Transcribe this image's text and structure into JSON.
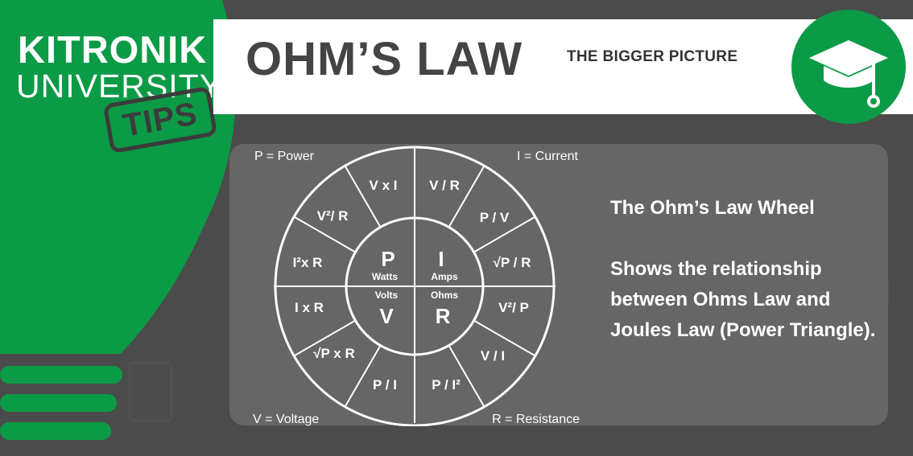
{
  "brand": {
    "line1": "KITRONIK",
    "line2": "UNIVERSITY",
    "badge": "TIPS"
  },
  "header": {
    "title": "OHM’S LAW",
    "subtitle": "THE BIGGER PICTURE"
  },
  "badge_icon": "graduation-cap-icon",
  "colors": {
    "brand_green": "#0b9b46",
    "background": "#4b4b4b",
    "panel": "#666666",
    "title_text": "#444444"
  },
  "wheel": {
    "corner_labels": {
      "top_left": "P = Power",
      "top_right": "I = Current",
      "bottom_left": "V = Voltage",
      "bottom_right": "R = Resistance"
    },
    "center": {
      "p": {
        "letter": "P",
        "unit": "Watts"
      },
      "i": {
        "letter": "I",
        "unit": "Amps"
      },
      "v": {
        "letter": "V",
        "unit": "Volts"
      },
      "r": {
        "letter": "R",
        "unit": "Ohms"
      }
    },
    "formulas": {
      "p": [
        "V x I",
        "V²/ R",
        "I²x R"
      ],
      "i": [
        "V / R",
        "P / V",
        "√P / R"
      ],
      "r": [
        "V²/ P",
        "V / I",
        "P / I²"
      ],
      "v": [
        "P / I",
        "√P x R",
        "I x R"
      ]
    }
  },
  "description": {
    "title": "The Ohm’s Law Wheel",
    "body": "Shows the relationship between Ohms Law and Joules Law (Power Triangle)."
  }
}
